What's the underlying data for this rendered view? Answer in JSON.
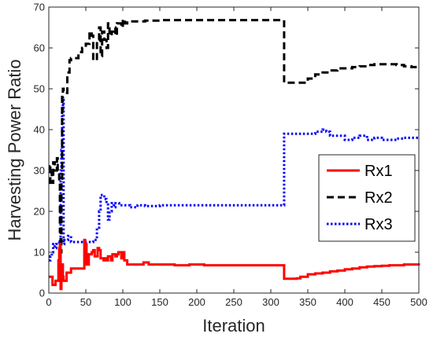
{
  "chart_data": {
    "type": "line",
    "title": "",
    "xlabel": "Iteration",
    "ylabel": "Harvesting Power Ratio",
    "xlim": [
      0,
      500
    ],
    "ylim": [
      0,
      70
    ],
    "xticks": [
      "0",
      "50",
      "100",
      "150",
      "200",
      "250",
      "300",
      "350",
      "400",
      "450",
      "500"
    ],
    "yticks": [
      "0",
      "10",
      "20",
      "30",
      "40",
      "50",
      "60",
      "70"
    ],
    "grid": false,
    "legend_position": "right",
    "series": [
      {
        "name": "Rx1",
        "color": "#ff0000",
        "style": "solid",
        "x": [
          0,
          3,
          5,
          7,
          9,
          11,
          13,
          14,
          15,
          16,
          17,
          18,
          19,
          20,
          22,
          24,
          26,
          28,
          30,
          35,
          40,
          45,
          48,
          49,
          50,
          51,
          53,
          54,
          56,
          58,
          60,
          62,
          64,
          66,
          68,
          70,
          72,
          74,
          76,
          78,
          80,
          82,
          84,
          86,
          88,
          90,
          92,
          94,
          96,
          98,
          100,
          102,
          104,
          106,
          108,
          112,
          116,
          120,
          124,
          128,
          135,
          140,
          150,
          170,
          190,
          210,
          250,
          290,
          317,
          318,
          325,
          335,
          340,
          345,
          350,
          360,
          370,
          380,
          390,
          400,
          410,
          420,
          430,
          440,
          450,
          460,
          470,
          480,
          490,
          500
        ],
        "y": [
          4,
          4,
          2,
          2,
          3,
          3,
          8,
          11,
          12,
          1,
          6,
          7,
          4,
          3,
          3,
          5,
          5,
          5,
          6,
          6,
          6,
          6,
          13,
          8,
          12,
          7,
          7,
          9.5,
          9.5,
          10,
          10.5,
          9,
          9,
          11,
          10.5,
          8.5,
          8.5,
          8,
          8.5,
          8,
          9,
          9,
          8,
          9.5,
          9.5,
          9,
          9.5,
          10,
          10,
          8.5,
          10,
          8,
          8,
          7,
          7,
          7,
          7,
          7,
          7,
          7.5,
          7,
          7,
          7,
          6.8,
          7,
          6.8,
          6.8,
          6.8,
          6.8,
          3.5,
          3.5,
          3.6,
          4,
          4,
          4.6,
          4.8,
          5,
          5.3,
          5.5,
          5.8,
          6,
          6.3,
          6.5,
          6.6,
          6.7,
          6.8,
          6.8,
          7,
          7,
          6.8
        ]
      },
      {
        "name": "Rx2",
        "color": "#000000",
        "style": "dashed",
        "x": [
          0,
          2,
          4,
          6,
          8,
          10,
          11,
          12,
          14,
          15,
          16,
          17,
          18,
          19,
          20,
          22,
          25,
          28,
          30,
          35,
          40,
          45,
          50,
          55,
          58,
          60,
          65,
          68,
          70,
          72,
          75,
          78,
          80,
          82,
          85,
          88,
          90,
          92,
          95,
          98,
          100,
          103,
          106,
          110,
          120,
          130,
          150,
          200,
          250,
          300,
          317,
          318,
          330,
          340,
          350,
          360,
          370,
          380,
          390,
          400,
          410,
          420,
          430,
          440,
          450,
          460,
          470,
          480,
          490,
          500
        ],
        "y": [
          27,
          31,
          27,
          32,
          30,
          30,
          33,
          30,
          27,
          15,
          10,
          28,
          48,
          50,
          49,
          49,
          54,
          57,
          57.5,
          57.5,
          59,
          60,
          61,
          64,
          63,
          57,
          62,
          65,
          58,
          64,
          62,
          60,
          66,
          63,
          64,
          65,
          63,
          66,
          66,
          65,
          67,
          66,
          66.5,
          66.5,
          66.5,
          66.7,
          66.8,
          66.8,
          66.8,
          66.8,
          66.8,
          51.5,
          51.5,
          51.5,
          52.5,
          53.5,
          54,
          54.5,
          55,
          55,
          55.3,
          55.5,
          55.8,
          56,
          56,
          56,
          55.8,
          55.5,
          55.3,
          55.2
        ]
      },
      {
        "name": "Rx3",
        "color": "#0000ff",
        "style": "dotted",
        "x": [
          0,
          2,
          4,
          6,
          8,
          10,
          12,
          14,
          15,
          16,
          17,
          18,
          19,
          20,
          21,
          23,
          26,
          30,
          40,
          50,
          55,
          60,
          65,
          68,
          70,
          72,
          75,
          78,
          80,
          82,
          85,
          88,
          90,
          95,
          100,
          110,
          120,
          130,
          150,
          200,
          250,
          300,
          317,
          318,
          330,
          340,
          350,
          360,
          370,
          375,
          380,
          390,
          400,
          410,
          420,
          430,
          440,
          450,
          460,
          470,
          480,
          490,
          500
        ],
        "y": [
          8,
          9,
          10,
          12,
          11,
          12,
          12,
          13,
          12,
          30,
          35,
          45,
          48,
          12,
          13,
          13,
          14,
          12.5,
          12.5,
          12.5,
          12.5,
          13,
          16,
          20,
          24,
          24,
          23,
          22,
          18,
          20,
          22,
          21,
          22,
          21.5,
          21.5,
          21,
          21.5,
          21.3,
          21.5,
          21.5,
          21.5,
          21.5,
          21.5,
          39,
          39,
          39,
          39,
          39.5,
          40,
          39.5,
          38.5,
          38.5,
          37.5,
          38,
          38.5,
          37.5,
          38,
          37.5,
          37.5,
          37.8,
          38,
          38,
          38
        ]
      }
    ]
  }
}
